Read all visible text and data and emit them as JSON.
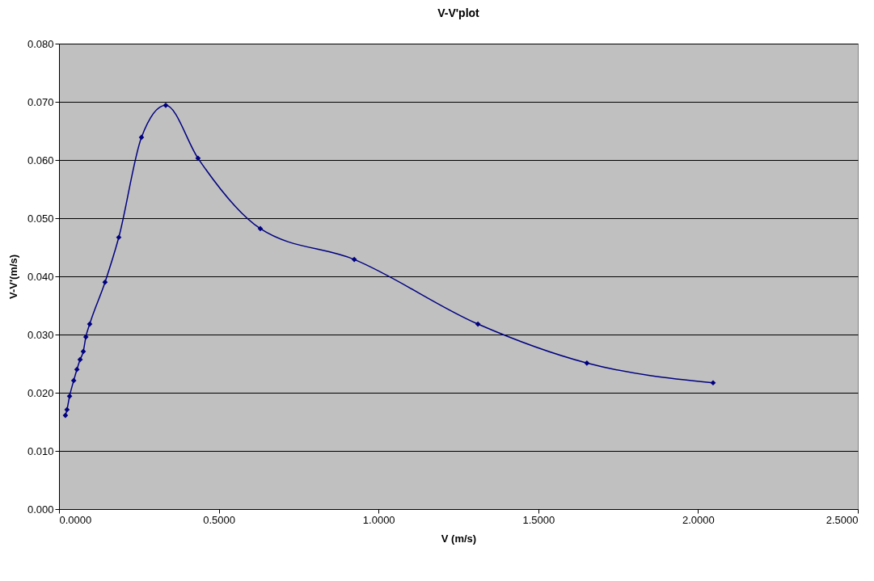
{
  "chart_data": {
    "type": "line",
    "title": "V-V'plot",
    "xlabel": "V (m/s)",
    "ylabel": "V-V'(m/s)",
    "x": [
      0.02,
      0.025,
      0.033,
      0.046,
      0.056,
      0.066,
      0.076,
      0.084,
      0.096,
      0.144,
      0.187,
      0.258,
      0.334,
      0.435,
      0.63,
      0.924,
      1.311,
      1.652,
      2.047
    ],
    "series": [
      {
        "color": "#000080",
        "values": [
          0.0161,
          0.0171,
          0.0194,
          0.0221,
          0.024,
          0.0257,
          0.0271,
          0.0296,
          0.0318,
          0.039,
          0.0467,
          0.0639,
          0.0694,
          0.0603,
          0.0482,
          0.0429,
          0.0318,
          0.0251,
          0.0217
        ]
      }
    ],
    "xlim": [
      0,
      2.5
    ],
    "ylim": [
      0,
      0.08
    ],
    "xticks": [
      {
        "value": 0,
        "label": "0.0000"
      },
      {
        "value": 0.5,
        "label": "0.5000"
      },
      {
        "value": 1,
        "label": "1.0000"
      },
      {
        "value": 1.5,
        "label": "1.5000"
      },
      {
        "value": 2,
        "label": "2.0000"
      },
      {
        "value": 2.5,
        "label": "2.5000"
      }
    ],
    "yticks": [
      {
        "value": 0,
        "label": "0.000"
      },
      {
        "value": 0.01,
        "label": "0.010"
      },
      {
        "value": 0.02,
        "label": "0.020"
      },
      {
        "value": 0.03,
        "label": "0.030"
      },
      {
        "value": 0.04,
        "label": "0.040"
      },
      {
        "value": 0.05,
        "label": "0.050"
      },
      {
        "value": 0.06,
        "label": "0.060"
      },
      {
        "value": 0.07,
        "label": "0.070"
      },
      {
        "value": 0.08,
        "label": "0.080"
      }
    ],
    "grid": "y",
    "marker": "diamond",
    "line_style": "solid"
  }
}
